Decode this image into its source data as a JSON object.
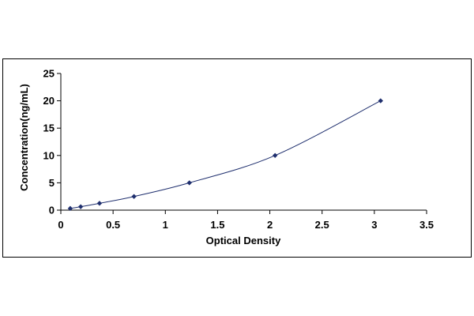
{
  "chart_data": {
    "type": "scatter",
    "title": "",
    "xlabel": "Optical Density",
    "ylabel": "Concentration(ng/mL)",
    "xlim": [
      0,
      3.5
    ],
    "ylim": [
      0,
      25
    ],
    "x_ticks": [
      "0",
      "0.5",
      "1",
      "1.5",
      "2",
      "2.5",
      "3",
      "3.5"
    ],
    "y_ticks": [
      "0",
      "5",
      "10",
      "15",
      "20",
      "25"
    ],
    "grid": false,
    "legend": "none",
    "series": [
      {
        "x": [
          0.09,
          0.19,
          0.37,
          0.7,
          1.23,
          2.05,
          3.06
        ],
        "y": [
          0.31,
          0.63,
          1.25,
          2.5,
          5,
          10,
          20
        ],
        "marker": "diamond",
        "marker_color": "#1f2f6e",
        "line": "smooth",
        "line_color": "#1f2f6e"
      }
    ]
  }
}
